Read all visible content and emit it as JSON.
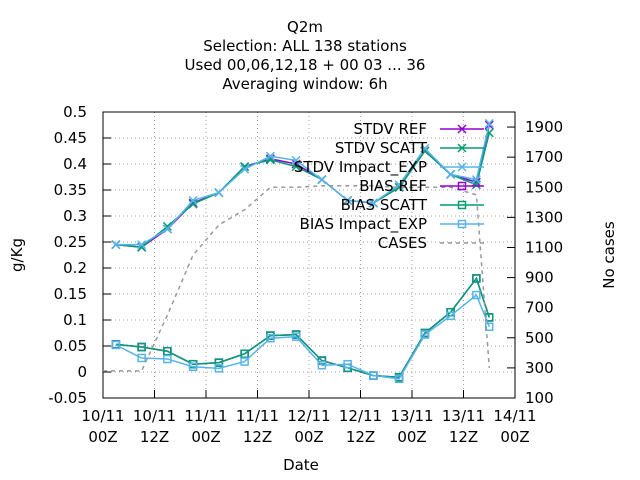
{
  "chart_data": {
    "type": "line",
    "title_lines": [
      "Q2m",
      "Selection: ALL    138 stations",
      "Used  00,06,12,18 + 00 03 ... 36",
      "Averaging window:  6h"
    ],
    "xlabel": "Date",
    "ylabel": "g/Kg",
    "y2label": "No cases",
    "ylim": [
      -0.05,
      0.5
    ],
    "y2lim": [
      100,
      2000
    ],
    "xlim": [
      0,
      96
    ],
    "x_ticks": [
      {
        "x": 0,
        "line1": "10/11",
        "line2": "00Z"
      },
      {
        "x": 12,
        "line1": "10/11",
        "line2": "12Z"
      },
      {
        "x": 24,
        "line1": "11/11",
        "line2": "00Z"
      },
      {
        "x": 36,
        "line1": "11/11",
        "line2": "12Z"
      },
      {
        "x": 48,
        "line1": "12/11",
        "line2": "00Z"
      },
      {
        "x": 60,
        "line1": "12/11",
        "line2": "12Z"
      },
      {
        "x": 72,
        "line1": "13/11",
        "line2": "00Z"
      },
      {
        "x": 84,
        "line1": "13/11",
        "line2": "12Z"
      },
      {
        "x": 96,
        "line1": "14/11",
        "line2": "00Z"
      }
    ],
    "y_ticks": [
      "0.5",
      "0.45",
      "0.4",
      "0.35",
      "0.3",
      "0.25",
      "0.2",
      "0.15",
      "0.1",
      "0.05",
      "0",
      "-0.05"
    ],
    "y2_ticks": [
      "1900",
      "1700",
      "1500",
      "1300",
      "1100",
      "900",
      "700",
      "500",
      "300",
      "100"
    ],
    "legend_position": "top-right",
    "series": [
      {
        "name": "STDV REF",
        "color": "#9400d3",
        "marker": "x",
        "axis": "y1",
        "x": [
          3,
          9,
          15,
          21,
          27,
          33,
          39,
          45,
          51,
          57,
          63,
          69,
          75,
          81,
          87,
          90
        ],
        "y": [
          0.245,
          0.24,
          0.275,
          0.325,
          0.345,
          0.395,
          0.41,
          0.4,
          0.37,
          0.33,
          0.325,
          0.355,
          0.425,
          0.38,
          0.365,
          0.475
        ]
      },
      {
        "name": "STDV SCATT",
        "color": "#009e73",
        "marker": "x",
        "axis": "y1",
        "x": [
          3,
          9,
          15,
          21,
          27,
          33,
          39,
          45,
          51,
          57,
          63,
          69,
          75,
          81,
          87,
          90
        ],
        "y": [
          0.245,
          0.24,
          0.28,
          0.323,
          0.345,
          0.395,
          0.408,
          0.395,
          0.37,
          0.33,
          0.325,
          0.355,
          0.425,
          0.38,
          0.36,
          0.46
        ]
      },
      {
        "name": "STDV Impact_EXP",
        "color": "#56b4e9",
        "marker": "x",
        "axis": "y1",
        "x": [
          3,
          9,
          15,
          21,
          27,
          33,
          39,
          45,
          51,
          57,
          63,
          69,
          75,
          81,
          87,
          90
        ],
        "y": [
          0.245,
          0.245,
          0.275,
          0.33,
          0.345,
          0.39,
          0.415,
          0.407,
          0.37,
          0.33,
          0.325,
          0.36,
          0.43,
          0.38,
          0.37,
          0.478
        ]
      },
      {
        "name": "BIAS REF",
        "color": "#9400d3",
        "marker": "square",
        "axis": "y1",
        "x": [
          3,
          9,
          15,
          21,
          27,
          33,
          39,
          45,
          51,
          57,
          63,
          69,
          75,
          81,
          87,
          90
        ],
        "y": [
          0.053,
          0.048,
          0.04,
          0.015,
          0.018,
          0.035,
          0.07,
          0.072,
          0.022,
          0.008,
          -0.007,
          -0.01,
          0.075,
          0.115,
          0.18,
          0.105
        ]
      },
      {
        "name": "BIAS SCATT",
        "color": "#009e73",
        "marker": "square",
        "axis": "y1",
        "x": [
          3,
          9,
          15,
          21,
          27,
          33,
          39,
          45,
          51,
          57,
          63,
          69,
          75,
          81,
          87,
          90
        ],
        "y": [
          0.053,
          0.048,
          0.04,
          0.015,
          0.018,
          0.035,
          0.07,
          0.072,
          0.022,
          0.008,
          -0.007,
          -0.01,
          0.075,
          0.115,
          0.18,
          0.105
        ]
      },
      {
        "name": "BIAS Impact_EXP",
        "color": "#56b4e9",
        "marker": "square",
        "axis": "y1",
        "x": [
          3,
          9,
          15,
          21,
          27,
          33,
          39,
          45,
          51,
          57,
          63,
          69,
          75,
          81,
          87,
          90
        ],
        "y": [
          0.052,
          0.027,
          0.025,
          0.01,
          0.007,
          0.02,
          0.065,
          0.068,
          0.013,
          0.015,
          -0.007,
          -0.013,
          0.072,
          0.108,
          0.148,
          0.087
        ]
      },
      {
        "name": "CASES",
        "color": "#999999",
        "marker": "none",
        "dashed": true,
        "axis": "y2",
        "x": [
          0,
          3,
          6,
          9,
          15,
          21,
          27,
          33,
          39,
          45,
          51,
          57,
          63,
          69,
          75,
          81,
          87,
          90
        ],
        "y": [
          280,
          280,
          280,
          280,
          650,
          1050,
          1250,
          1350,
          1500,
          1500,
          1510,
          1510,
          1510,
          1500,
          1500,
          1500,
          1450,
          300
        ]
      }
    ]
  }
}
